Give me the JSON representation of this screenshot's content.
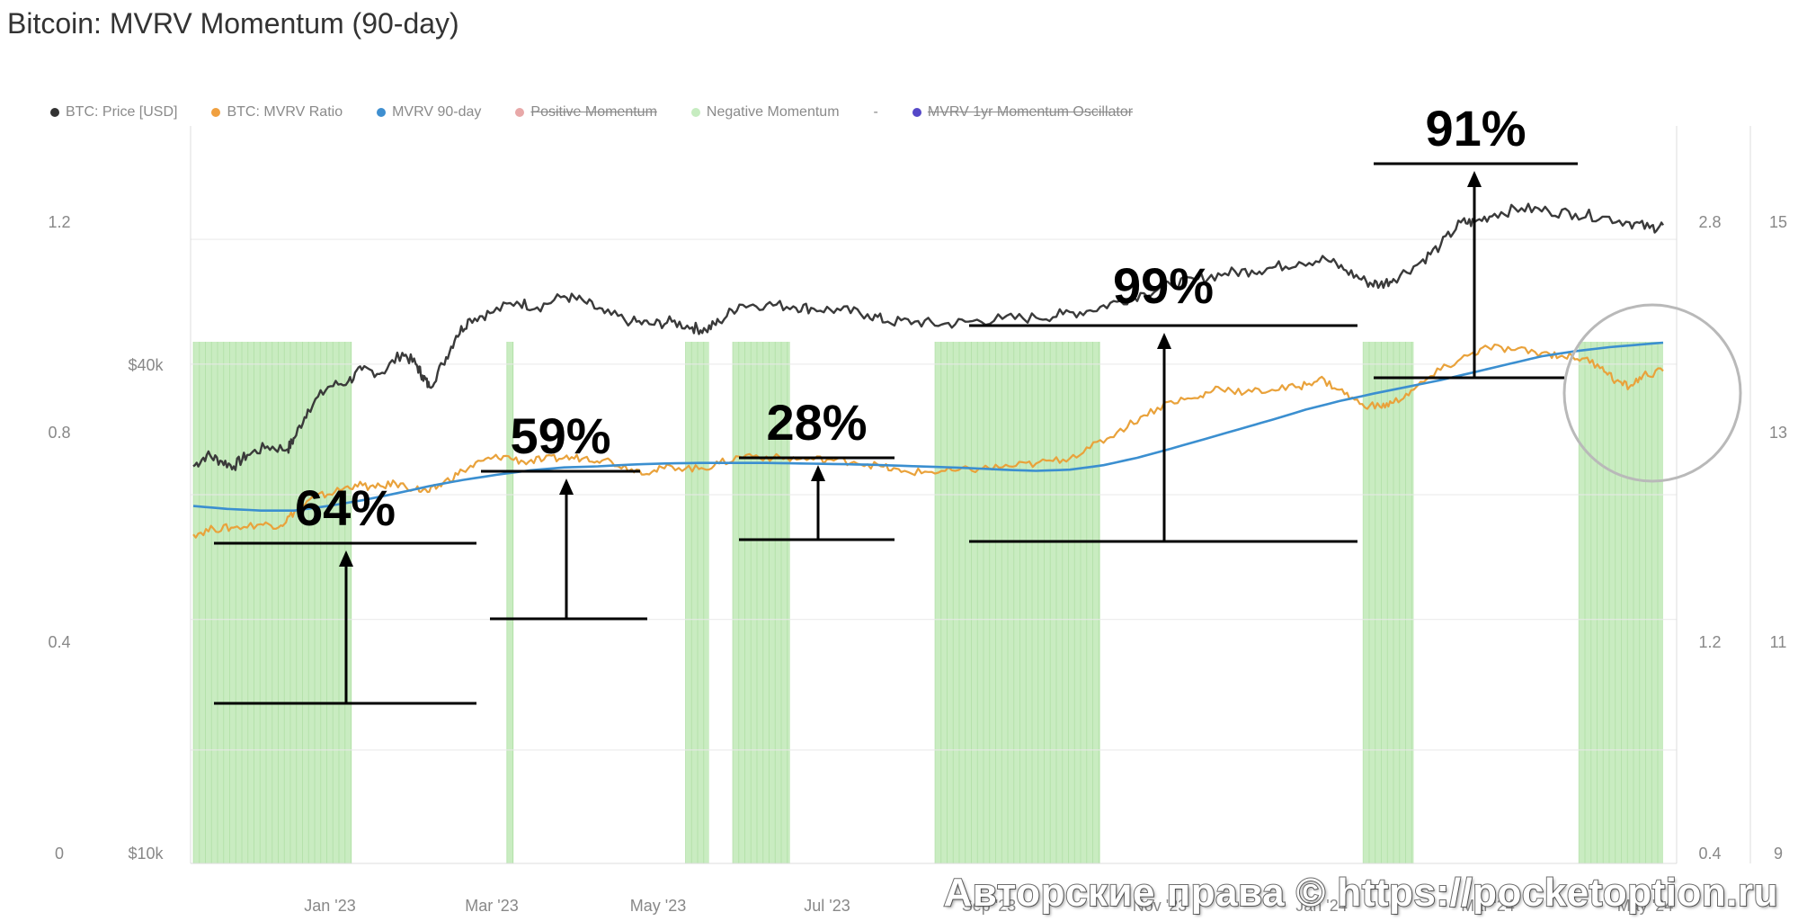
{
  "title": "Bitcoin: MVRV Momentum (90-day)",
  "watermark": "Авторские права © https://pocketoption.ru",
  "legend": [
    {
      "label": "BTC: Price [USD]",
      "color": "#333333",
      "struck": false
    },
    {
      "label": "BTC: MVRV Ratio",
      "color": "#f0a040",
      "struck": false
    },
    {
      "label": "MVRV 90-day",
      "color": "#3f8fd0",
      "struck": false
    },
    {
      "label": "Positive Momentum",
      "color": "#e8a8a8",
      "struck": true
    },
    {
      "label": "Negative Momentum",
      "color": "#c6ecc0",
      "struck": false
    },
    {
      "label": "-",
      "color": "",
      "struck": false
    },
    {
      "label": "MVRV 1yr Momentum Oscillator",
      "color": "#5548c8",
      "struck": true
    }
  ],
  "colors": {
    "price": "#3a3a3a",
    "mvrv": "#e9a23b",
    "mvrv90": "#3b8fd0",
    "negative_momentum": "#bfe9b6",
    "grid": "#e9e9e9",
    "annotation": "#000000"
  },
  "chart_data": {
    "type": "line",
    "x_labels": [
      "Jan '23",
      "Mar '23",
      "May '23",
      "Jul '23",
      "Sep '23",
      "Nov '23",
      "Jan '24",
      "Mar '24",
      "May '24"
    ],
    "y_axes": {
      "left_outer": {
        "ticks": [
          "0",
          "0.4",
          "0.8",
          "1.2"
        ],
        "range": [
          0,
          1.2
        ]
      },
      "left_price": {
        "ticks": [
          "$10k",
          "$40k"
        ],
        "scale": "log"
      },
      "right_mvrv": {
        "ticks": [
          "0.4",
          "1.2",
          "2.8"
        ]
      },
      "right_outer": {
        "ticks": [
          "9",
          "11",
          "13",
          "15"
        ],
        "range": [
          9,
          15
        ]
      }
    },
    "series": [
      {
        "name": "BTC: Price [USD]",
        "points": [
          [
            0,
            0.7
          ],
          [
            0.04,
            0.72
          ],
          [
            0.08,
            0.71
          ],
          [
            0.12,
            0.7
          ],
          [
            0.16,
            0.72
          ],
          [
            0.22,
            0.735
          ],
          [
            0.28,
            0.73
          ],
          [
            0.3,
            0.75
          ],
          [
            0.34,
            0.8
          ],
          [
            0.4,
            0.84
          ],
          [
            0.46,
            0.85
          ],
          [
            0.5,
            0.87
          ],
          [
            0.56,
            0.865
          ],
          [
            0.62,
            0.9
          ],
          [
            0.66,
            0.88
          ],
          [
            0.68,
            0.86
          ],
          [
            0.7,
            0.84
          ],
          [
            0.74,
            0.88
          ],
          [
            0.78,
            0.93
          ],
          [
            0.82,
            0.96
          ],
          [
            0.88,
            0.97
          ],
          [
            0.96,
            0.99
          ],
          [
            1.02,
            0.98
          ],
          [
            1.1,
            1.0
          ],
          [
            1.16,
            0.99
          ],
          [
            1.22,
            0.97
          ],
          [
            1.3,
            0.955
          ],
          [
            1.36,
            0.95
          ],
          [
            1.42,
            0.955
          ],
          [
            1.48,
            0.945
          ],
          [
            1.52,
            0.94
          ],
          [
            1.56,
            0.955
          ],
          [
            1.62,
            0.985
          ],
          [
            1.7,
            0.985
          ],
          [
            1.78,
            0.982
          ],
          [
            1.84,
            0.978
          ],
          [
            1.92,
            0.975
          ],
          [
            2.0,
            0.968
          ],
          [
            2.06,
            0.955
          ],
          [
            2.14,
            0.955
          ],
          [
            2.22,
            0.95
          ],
          [
            2.3,
            0.955
          ],
          [
            2.4,
            0.96
          ],
          [
            2.5,
            0.962
          ],
          [
            2.58,
            0.968
          ],
          [
            2.66,
            0.975
          ],
          [
            2.74,
            0.99
          ],
          [
            2.82,
            1.005
          ],
          [
            2.9,
            1.02
          ],
          [
            2.98,
            1.03
          ],
          [
            3.06,
            1.04
          ],
          [
            3.14,
            1.045
          ],
          [
            3.2,
            1.05
          ],
          [
            3.28,
            1.06
          ],
          [
            3.36,
            1.065
          ],
          [
            3.42,
            1.045
          ],
          [
            3.48,
            1.025
          ],
          [
            3.52,
            1.02
          ],
          [
            3.56,
            1.03
          ],
          [
            3.64,
            1.06
          ],
          [
            3.7,
            1.09
          ],
          [
            3.76,
            1.13
          ],
          [
            3.8,
            1.13
          ],
          [
            3.86,
            1.145
          ],
          [
            3.94,
            1.155
          ],
          [
            4.02,
            1.15
          ],
          [
            4.1,
            1.145
          ],
          [
            4.18,
            1.14
          ],
          [
            4.26,
            1.13
          ],
          [
            4.32,
            1.12
          ],
          [
            4.36,
            1.125
          ]
        ]
      },
      {
        "name": "BTC: MVRV Ratio",
        "points": [
          [
            0,
            0.58
          ],
          [
            0.06,
            0.59
          ],
          [
            0.12,
            0.592
          ],
          [
            0.2,
            0.598
          ],
          [
            0.26,
            0.596
          ],
          [
            0.3,
            0.62
          ],
          [
            0.36,
            0.645
          ],
          [
            0.42,
            0.655
          ],
          [
            0.48,
            0.668
          ],
          [
            0.54,
            0.662
          ],
          [
            0.6,
            0.67
          ],
          [
            0.66,
            0.66
          ],
          [
            0.7,
            0.655
          ],
          [
            0.74,
            0.67
          ],
          [
            0.8,
            0.692
          ],
          [
            0.86,
            0.71
          ],
          [
            0.92,
            0.718
          ],
          [
            0.98,
            0.708
          ],
          [
            1.04,
            0.712
          ],
          [
            1.1,
            0.715
          ],
          [
            1.16,
            0.715
          ],
          [
            1.22,
            0.712
          ],
          [
            1.3,
            0.695
          ],
          [
            1.36,
            0.69
          ],
          [
            1.42,
            0.7
          ],
          [
            1.5,
            0.695
          ],
          [
            1.56,
            0.705
          ],
          [
            1.64,
            0.72
          ],
          [
            1.72,
            0.715
          ],
          [
            1.8,
            0.713
          ],
          [
            1.88,
            0.712
          ],
          [
            1.96,
            0.708
          ],
          [
            2.04,
            0.7
          ],
          [
            2.1,
            0.69
          ],
          [
            2.18,
            0.69
          ],
          [
            2.26,
            0.692
          ],
          [
            2.34,
            0.696
          ],
          [
            2.42,
            0.7
          ],
          [
            2.5,
            0.705
          ],
          [
            2.58,
            0.712
          ],
          [
            2.66,
            0.732
          ],
          [
            2.74,
            0.76
          ],
          [
            2.82,
            0.79
          ],
          [
            2.9,
            0.815
          ],
          [
            2.98,
            0.82
          ],
          [
            3.04,
            0.84
          ],
          [
            3.12,
            0.83
          ],
          [
            3.2,
            0.835
          ],
          [
            3.28,
            0.84
          ],
          [
            3.34,
            0.855
          ],
          [
            3.4,
            0.835
          ],
          [
            3.46,
            0.81
          ],
          [
            3.52,
            0.805
          ],
          [
            3.56,
            0.812
          ],
          [
            3.62,
            0.835
          ],
          [
            3.7,
            0.87
          ],
          [
            3.78,
            0.895
          ],
          [
            3.84,
            0.91
          ],
          [
            3.92,
            0.905
          ],
          [
            4.0,
            0.9
          ],
          [
            4.06,
            0.895
          ],
          [
            4.12,
            0.89
          ],
          [
            4.18,
            0.875
          ],
          [
            4.22,
            0.85
          ],
          [
            4.26,
            0.84
          ],
          [
            4.3,
            0.86
          ],
          [
            4.36,
            0.868
          ]
        ]
      },
      {
        "name": "MVRV 90-day",
        "points": [
          [
            0,
            0.63
          ],
          [
            0.1,
            0.625
          ],
          [
            0.2,
            0.622
          ],
          [
            0.3,
            0.622
          ],
          [
            0.4,
            0.63
          ],
          [
            0.5,
            0.64
          ],
          [
            0.6,
            0.652
          ],
          [
            0.7,
            0.665
          ],
          [
            0.8,
            0.676
          ],
          [
            0.9,
            0.685
          ],
          [
            1.0,
            0.693
          ],
          [
            1.1,
            0.698
          ],
          [
            1.2,
            0.7
          ],
          [
            1.3,
            0.703
          ],
          [
            1.4,
            0.705
          ],
          [
            1.5,
            0.706
          ],
          [
            1.6,
            0.706
          ],
          [
            1.7,
            0.706
          ],
          [
            1.8,
            0.705
          ],
          [
            1.9,
            0.704
          ],
          [
            2.0,
            0.703
          ],
          [
            2.1,
            0.701
          ],
          [
            2.2,
            0.699
          ],
          [
            2.3,
            0.697
          ],
          [
            2.4,
            0.694
          ],
          [
            2.5,
            0.692
          ],
          [
            2.6,
            0.694
          ],
          [
            2.7,
            0.702
          ],
          [
            2.8,
            0.715
          ],
          [
            2.9,
            0.731
          ],
          [
            3.0,
            0.748
          ],
          [
            3.1,
            0.765
          ],
          [
            3.2,
            0.782
          ],
          [
            3.3,
            0.8
          ],
          [
            3.4,
            0.815
          ],
          [
            3.5,
            0.828
          ],
          [
            3.6,
            0.84
          ],
          [
            3.7,
            0.852
          ],
          [
            3.8,
            0.866
          ],
          [
            3.9,
            0.88
          ],
          [
            4.0,
            0.894
          ],
          [
            4.1,
            0.903
          ],
          [
            4.2,
            0.91
          ],
          [
            4.3,
            0.915
          ],
          [
            4.36,
            0.918
          ]
        ]
      }
    ],
    "negative_momentum_bands": [
      [
        0.0,
        0.47
      ],
      [
        0.93,
        0.95
      ],
      [
        1.46,
        1.53
      ],
      [
        1.6,
        1.77
      ],
      [
        2.2,
        2.69
      ],
      [
        3.47,
        3.62
      ],
      [
        4.11,
        4.36
      ]
    ],
    "annotations": [
      {
        "label": "64%",
        "from": 0.735,
        "to": 0.85
      },
      {
        "label": "59%",
        "from": 0.76,
        "to": 0.9
      },
      {
        "label": "28%",
        "from": 0.85,
        "to": 0.9
      },
      {
        "label": "99%",
        "from": 0.85,
        "to": 1.03
      },
      {
        "label": "91%",
        "from": 0.99,
        "to": 1.15
      }
    ],
    "highlight": "circle around latest MVRV vs MVRV 90-day crossover",
    "grid": true,
    "legend_position": "top-left"
  }
}
